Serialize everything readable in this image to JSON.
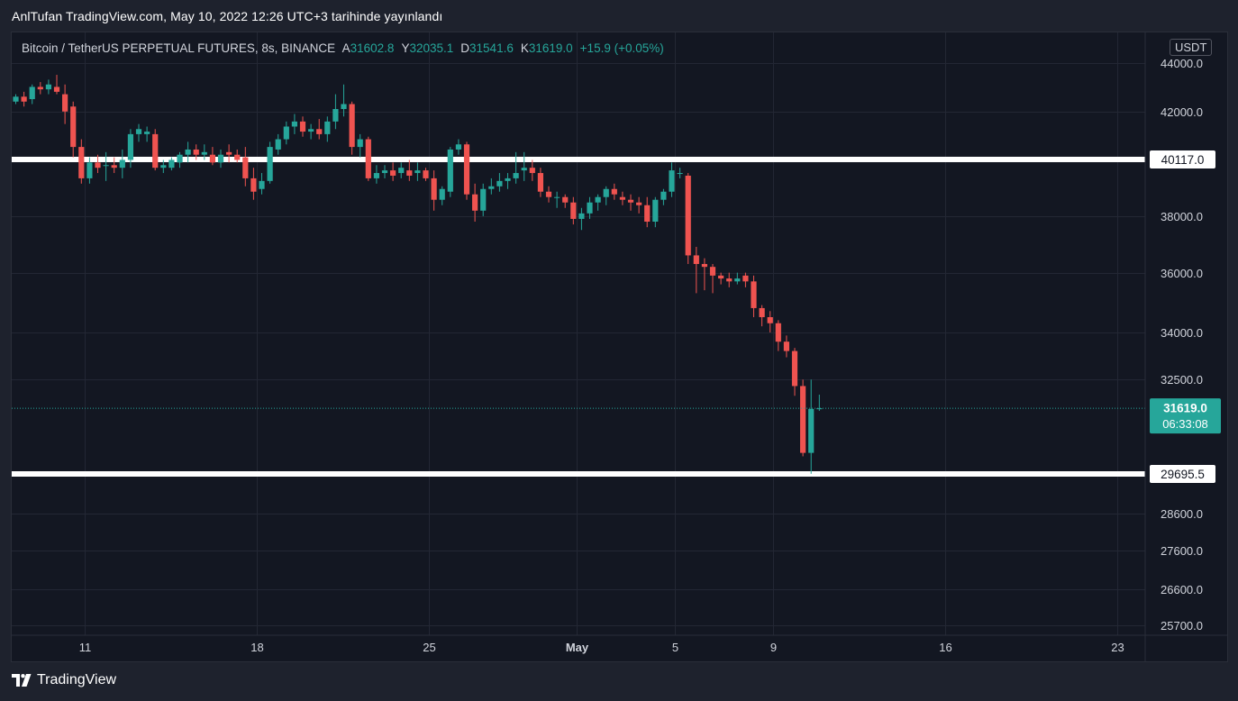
{
  "publish_line": "AnlTufan TradingView.com, May 10, 2022 12:26 UTC+3 tarihinde yayınlandı",
  "legend": {
    "symbol": "Bitcoin / TetherUS PERPETUAL FUTURES, 8s, BINANCE",
    "open_key": "A",
    "open": "31602.8",
    "high_key": "Y",
    "high": "32035.1",
    "low_key": "D",
    "low": "31541.6",
    "close_key": "K",
    "close": "31619.0",
    "change": "+15.9 (+0.05%)"
  },
  "currency": "USDT",
  "footer": {
    "brand": "TradingView"
  },
  "colors": {
    "up": "#26a69a",
    "down": "#ef5350",
    "background": "#131722",
    "frame": "#1e222d",
    "level_line": "#ffffff",
    "price_line": "#26a69a"
  },
  "chart_data": {
    "type": "candlestick",
    "title": "Bitcoin / TetherUS PERPETUAL FUTURES, 8s, BINANCE",
    "timeframe": "8s",
    "x_ticks": [
      {
        "label": "11",
        "day": 11,
        "bold": false
      },
      {
        "label": "18",
        "day": 18,
        "bold": false
      },
      {
        "label": "25",
        "day": 25,
        "bold": false
      },
      {
        "label": "May",
        "day": 31,
        "bold": true
      },
      {
        "label": "5",
        "day": 35,
        "bold": false
      },
      {
        "label": "9",
        "day": 39,
        "bold": false
      },
      {
        "label": "16",
        "day": 46,
        "bold": false
      },
      {
        "label": "23",
        "day": 53,
        "bold": false
      }
    ],
    "y_scale": "log",
    "y_ticks": [
      "44000.0",
      "42000.0",
      "38000.0",
      "36000.0",
      "34000.0",
      "32500.0",
      "28600.0",
      "27600.0",
      "26600.0",
      "25700.0"
    ],
    "ylim": [
      25450,
      45300
    ],
    "horizontal_levels": [
      {
        "label": "40117.0",
        "value": 40117.0
      },
      {
        "label": "29695.5",
        "value": 29695.5
      }
    ],
    "last_price": {
      "label": "31619.0",
      "value": 31619.0,
      "countdown": "06:33:08"
    },
    "candles": [
      [
        43500,
        43900,
        43100,
        43800
      ],
      [
        43800,
        43900,
        42200,
        42400
      ],
      [
        42400,
        42700,
        42300,
        42600
      ],
      [
        42600,
        42800,
        42200,
        42400
      ],
      [
        42500,
        43100,
        42300,
        43000
      ],
      [
        43000,
        43200,
        42700,
        42900
      ],
      [
        42900,
        43300,
        42700,
        43100
      ],
      [
        43000,
        43500,
        42700,
        42800
      ],
      [
        42700,
        43100,
        41500,
        42000
      ],
      [
        42200,
        42400,
        40200,
        40600
      ],
      [
        40600,
        40900,
        39200,
        39400
      ],
      [
        39400,
        40200,
        39200,
        40000
      ],
      [
        40000,
        40300,
        39600,
        39800
      ],
      [
        39900,
        40400,
        39300,
        39900
      ],
      [
        39900,
        40200,
        39600,
        39800
      ],
      [
        39800,
        40500,
        39400,
        40100
      ],
      [
        40100,
        41300,
        39800,
        41100
      ],
      [
        41100,
        41500,
        40800,
        41300
      ],
      [
        41100,
        41400,
        40800,
        41200
      ],
      [
        41100,
        41300,
        39700,
        39800
      ],
      [
        39800,
        40100,
        39600,
        39900
      ],
      [
        39800,
        40200,
        39700,
        40100
      ],
      [
        40000,
        40400,
        39800,
        40300
      ],
      [
        40300,
        40800,
        40000,
        40500
      ],
      [
        40500,
        40700,
        40100,
        40300
      ],
      [
        40300,
        40700,
        40100,
        40400
      ],
      [
        40300,
        40600,
        39900,
        40000
      ],
      [
        40000,
        40500,
        39800,
        40300
      ],
      [
        40400,
        40700,
        40000,
        40300
      ],
      [
        40300,
        40500,
        40000,
        40100
      ],
      [
        40200,
        40600,
        39100,
        39400
      ],
      [
        39400,
        39800,
        38600,
        38900
      ],
      [
        39000,
        39600,
        38800,
        39300
      ],
      [
        39300,
        40800,
        39200,
        40600
      ],
      [
        40500,
        41100,
        40300,
        40900
      ],
      [
        40900,
        41600,
        40700,
        41400
      ],
      [
        41400,
        41900,
        41100,
        41600
      ],
      [
        41600,
        41800,
        41000,
        41200
      ],
      [
        41200,
        41500,
        40900,
        41300
      ],
      [
        41300,
        41700,
        40900,
        41100
      ],
      [
        41100,
        41800,
        40800,
        41600
      ],
      [
        41600,
        42700,
        41300,
        42100
      ],
      [
        42100,
        43100,
        41800,
        42300
      ],
      [
        42300,
        42400,
        40300,
        40600
      ],
      [
        40600,
        41100,
        40200,
        40900
      ],
      [
        40900,
        41000,
        39300,
        39400
      ],
      [
        39400,
        39900,
        39200,
        39600
      ],
      [
        39600,
        39900,
        39400,
        39700
      ],
      [
        39700,
        40000,
        39300,
        39500
      ],
      [
        39600,
        40000,
        39400,
        39800
      ],
      [
        39700,
        40100,
        39300,
        39500
      ],
      [
        39600,
        40000,
        39300,
        39700
      ],
      [
        39700,
        39800,
        39300,
        39400
      ],
      [
        39400,
        39700,
        38200,
        38600
      ],
      [
        38600,
        39100,
        38400,
        39000
      ],
      [
        38900,
        40600,
        38700,
        40500
      ],
      [
        40500,
        40900,
        40300,
        40700
      ],
      [
        40700,
        40800,
        38600,
        38800
      ],
      [
        38800,
        39200,
        37800,
        38200
      ],
      [
        38200,
        39200,
        38000,
        39000
      ],
      [
        39000,
        39400,
        38800,
        39100
      ],
      [
        39100,
        39600,
        38900,
        39300
      ],
      [
        39300,
        39600,
        39000,
        39400
      ],
      [
        39400,
        40400,
        39200,
        39600
      ],
      [
        39700,
        40400,
        39300,
        39800
      ],
      [
        39800,
        40100,
        39300,
        39600
      ],
      [
        39600,
        39800,
        38700,
        38900
      ],
      [
        38900,
        39100,
        38500,
        38700
      ],
      [
        38700,
        38900,
        38300,
        38700
      ],
      [
        38700,
        38800,
        38300,
        38500
      ],
      [
        38500,
        38700,
        37700,
        37900
      ],
      [
        37900,
        38300,
        37500,
        38100
      ],
      [
        38100,
        38700,
        37900,
        38500
      ],
      [
        38500,
        38800,
        38200,
        38700
      ],
      [
        38700,
        39100,
        38400,
        39000
      ],
      [
        39000,
        39200,
        38600,
        38800
      ],
      [
        38700,
        38900,
        38400,
        38600
      ],
      [
        38600,
        38800,
        38200,
        38500
      ],
      [
        38500,
        38700,
        38100,
        38400
      ],
      [
        38400,
        38700,
        37600,
        37800
      ],
      [
        37800,
        38700,
        37600,
        38600
      ],
      [
        38600,
        39000,
        38400,
        38900
      ],
      [
        38900,
        40000,
        38700,
        39700
      ],
      [
        39600,
        39800,
        39400,
        39600
      ],
      [
        39500,
        39600,
        36300,
        36600
      ],
      [
        36600,
        36900,
        35300,
        36300
      ],
      [
        36300,
        36500,
        35400,
        36200
      ],
      [
        36200,
        36300,
        35300,
        35900
      ],
      [
        35900,
        36000,
        35600,
        35800
      ],
      [
        35800,
        36000,
        35500,
        35700
      ],
      [
        35700,
        36000,
        35600,
        35800
      ],
      [
        35900,
        36000,
        35500,
        35700
      ],
      [
        35700,
        35900,
        34500,
        34800
      ],
      [
        34800,
        34900,
        34200,
        34500
      ],
      [
        34500,
        34700,
        34000,
        34300
      ],
      [
        34300,
        34400,
        33400,
        33700
      ],
      [
        33700,
        33900,
        33200,
        33400
      ],
      [
        33400,
        33500,
        32000,
        32300
      ],
      [
        32300,
        32500,
        30200,
        30300
      ],
      [
        30300,
        32500,
        29700,
        31600
      ],
      [
        31602.8,
        32035.1,
        31541.6,
        31619.0
      ]
    ]
  }
}
